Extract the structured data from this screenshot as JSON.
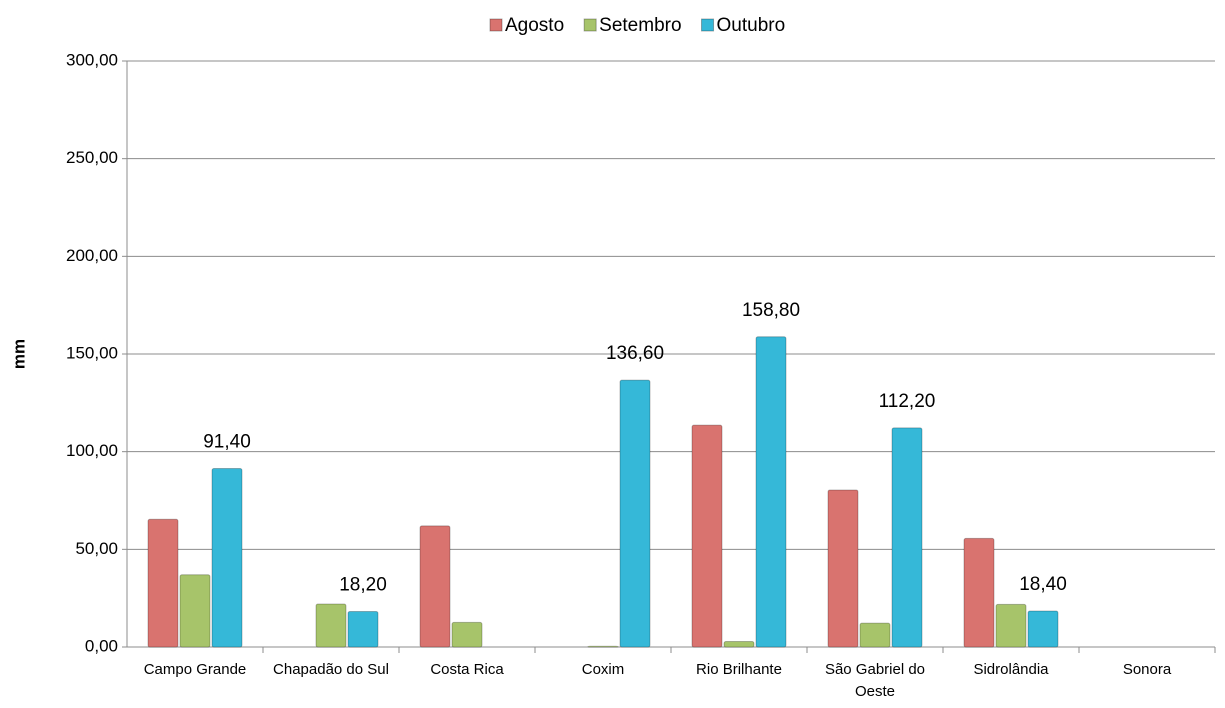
{
  "chart_data": {
    "type": "bar",
    "y_label": "mm",
    "categories": [
      "Campo Grande",
      "Chapadão do Sul",
      "Costa Rica",
      "Coxim",
      "Rio Brilhante",
      "São Gabriel do Oeste",
      "Sidrolândia",
      "Sonora"
    ],
    "series": [
      {
        "name": "Agosto",
        "color": "#d9736f",
        "values": [
          65.4,
          0,
          62,
          0,
          113.6,
          80.4,
          55.6,
          0
        ]
      },
      {
        "name": "Setembro",
        "color": "#a7c46a",
        "values": [
          37,
          22,
          12.6,
          0.4,
          2.8,
          12.2,
          21.8,
          0
        ]
      },
      {
        "name": "Outubro",
        "color": "#35b8d8",
        "values": [
          91.4,
          18.2,
          0,
          136.6,
          158.8,
          112.2,
          18.4,
          0
        ],
        "value_labels": [
          "91,40",
          "18,20",
          null,
          "136,60",
          "158,80",
          "112,20",
          "18,40",
          null
        ]
      }
    ],
    "ylim": [
      0,
      300
    ],
    "yticks": [
      {
        "value": 0,
        "label": "0,00"
      },
      {
        "value": 50,
        "label": "50,00"
      },
      {
        "value": 100,
        "label": "100,00"
      },
      {
        "value": 150,
        "label": "150,00"
      },
      {
        "value": 200,
        "label": "200,00"
      },
      {
        "value": 250,
        "label": "250,00"
      },
      {
        "value": 300,
        "label": "300,00"
      }
    ],
    "grid": true,
    "legend": "top"
  }
}
